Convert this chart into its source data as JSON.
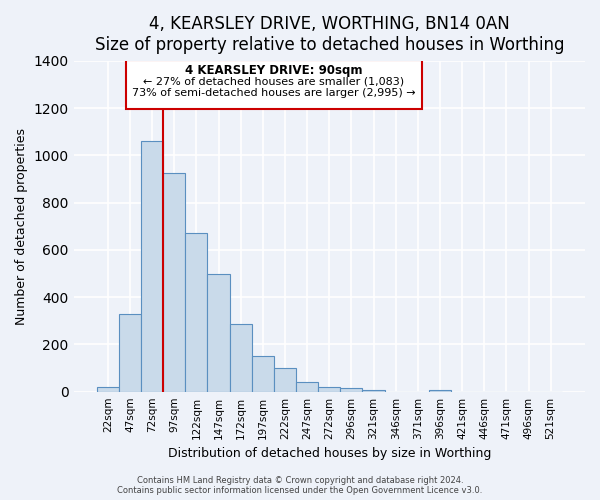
{
  "title": "4, KEARSLEY DRIVE, WORTHING, BN14 0AN",
  "subtitle": "Size of property relative to detached houses in Worthing",
  "xlabel": "Distribution of detached houses by size in Worthing",
  "ylabel": "Number of detached properties",
  "bar_labels": [
    "22sqm",
    "47sqm",
    "72sqm",
    "97sqm",
    "122sqm",
    "147sqm",
    "172sqm",
    "197sqm",
    "222sqm",
    "247sqm",
    "272sqm",
    "296sqm",
    "321sqm",
    "346sqm",
    "371sqm",
    "396sqm",
    "421sqm",
    "446sqm",
    "471sqm",
    "496sqm",
    "521sqm"
  ],
  "bar_values": [
    20,
    330,
    1060,
    925,
    670,
    500,
    285,
    150,
    100,
    40,
    20,
    15,
    5,
    0,
    0,
    5,
    0,
    0,
    0,
    0,
    0
  ],
  "bar_color": "#c9daea",
  "bar_edge_color": "#5a8fc0",
  "vline_x_index": 2,
  "vline_color": "#cc0000",
  "annotation_title": "4 KEARSLEY DRIVE: 90sqm",
  "annotation_line1": "← 27% of detached houses are smaller (1,083)",
  "annotation_line2": "73% of semi-detached houses are larger (2,995) →",
  "annotation_box_color": "#ffffff",
  "annotation_box_edge": "#cc0000",
  "ylim": [
    0,
    1400
  ],
  "yticks": [
    0,
    200,
    400,
    600,
    800,
    1000,
    1200,
    1400
  ],
  "footer1": "Contains HM Land Registry data © Crown copyright and database right 2024.",
  "footer2": "Contains public sector information licensed under the Open Government Licence v3.0.",
  "bg_color": "#eef2f9",
  "grid_color": "#ffffff",
  "title_fontsize": 12,
  "subtitle_fontsize": 10
}
